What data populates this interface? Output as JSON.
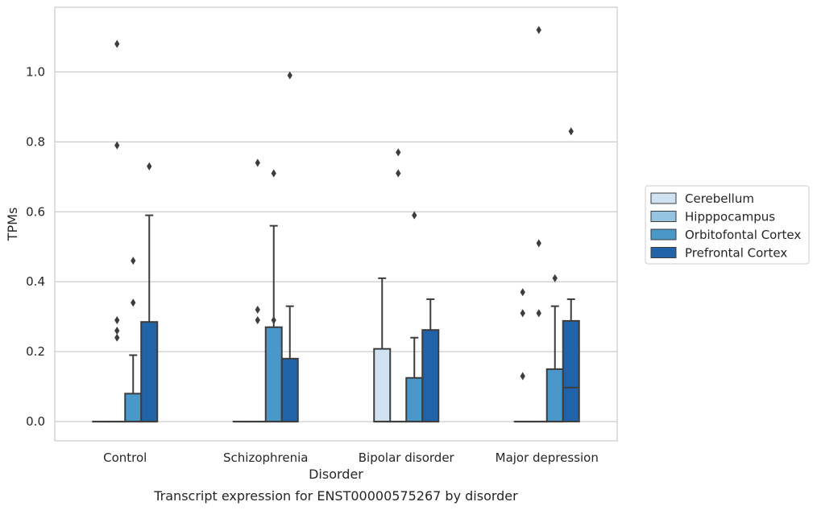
{
  "chart_data": {
    "type": "boxplot",
    "xlabel": "Disorder",
    "ylabel": "TPMs",
    "caption": "Transcript expression for ENST00000575267 by disorder",
    "categories": [
      "Control",
      "Schizophrenia",
      "Bipolar disorder",
      "Major depression"
    ],
    "ylim": [
      -0.055,
      1.185
    ],
    "yticks": [
      0.0,
      0.2,
      0.4,
      0.6,
      0.8,
      1.0
    ],
    "ytick_labels": [
      "0.0",
      "0.2",
      "0.4",
      "0.6",
      "0.8",
      "1.0"
    ],
    "grid": "horizontal",
    "legend_position": "right",
    "series": [
      {
        "name": "Cerebellum",
        "color": "#d0e1f2",
        "boxes": [
          {
            "q1": 0,
            "median": 0,
            "q3": 0,
            "whisker_low": 0,
            "whisker_high": 0,
            "outliers": []
          },
          {
            "q1": 0,
            "median": 0,
            "q3": 0,
            "whisker_low": 0,
            "whisker_high": 0,
            "outliers": []
          },
          {
            "q1": 0,
            "median": 0,
            "q3": 0.208,
            "whisker_low": 0,
            "whisker_high": 0.41,
            "outliers": []
          },
          {
            "q1": 0,
            "median": 0,
            "q3": 0,
            "whisker_low": 0,
            "whisker_high": 0,
            "outliers": [
              0.13,
              0.31,
              0.37
            ]
          }
        ]
      },
      {
        "name": "Hipppocampus",
        "color": "#94c4df",
        "boxes": [
          {
            "q1": 0,
            "median": 0,
            "q3": 0,
            "whisker_low": 0,
            "whisker_high": 0,
            "outliers": [
              0.24,
              0.26,
              0.29,
              0.79,
              1.08
            ]
          },
          {
            "q1": 0,
            "median": 0,
            "q3": 0,
            "whisker_low": 0,
            "whisker_high": 0,
            "outliers": [
              0.29,
              0.32,
              0.74
            ]
          },
          {
            "q1": 0,
            "median": 0,
            "q3": 0,
            "whisker_low": 0,
            "whisker_high": 0,
            "outliers": [
              0.71,
              0.77
            ]
          },
          {
            "q1": 0,
            "median": 0,
            "q3": 0,
            "whisker_low": 0,
            "whisker_high": 0,
            "outliers": [
              0.31,
              0.51,
              1.12
            ]
          }
        ]
      },
      {
        "name": "Orbitofontal Cortex",
        "color": "#4a98c9",
        "boxes": [
          {
            "q1": 0,
            "median": 0,
            "q3": 0.08,
            "whisker_low": 0,
            "whisker_high": 0.19,
            "outliers": [
              0.34,
              0.46
            ]
          },
          {
            "q1": 0,
            "median": 0,
            "q3": 0.27,
            "whisker_low": 0,
            "whisker_high": 0.56,
            "outliers": [
              0.29,
              0.71
            ]
          },
          {
            "q1": 0,
            "median": 0,
            "q3": 0.125,
            "whisker_low": 0,
            "whisker_high": 0.24,
            "outliers": [
              0.59
            ]
          },
          {
            "q1": 0,
            "median": 0,
            "q3": 0.15,
            "whisker_low": 0,
            "whisker_high": 0.33,
            "outliers": [
              0.41
            ]
          }
        ]
      },
      {
        "name": "Prefrontal Cortex",
        "color": "#2163a8",
        "boxes": [
          {
            "q1": 0,
            "median": 0,
            "q3": 0.285,
            "whisker_low": 0,
            "whisker_high": 0.59,
            "outliers": [
              0.73
            ]
          },
          {
            "q1": 0,
            "median": 0,
            "q3": 0.18,
            "whisker_low": 0,
            "whisker_high": 0.33,
            "outliers": [
              0.99
            ]
          },
          {
            "q1": 0,
            "median": 0,
            "q3": 0.262,
            "whisker_low": 0,
            "whisker_high": 0.35,
            "outliers": []
          },
          {
            "q1": 0,
            "median": 0.097,
            "q3": 0.288,
            "whisker_low": 0,
            "whisker_high": 0.35,
            "outliers": [
              0.83
            ]
          }
        ]
      }
    ]
  }
}
